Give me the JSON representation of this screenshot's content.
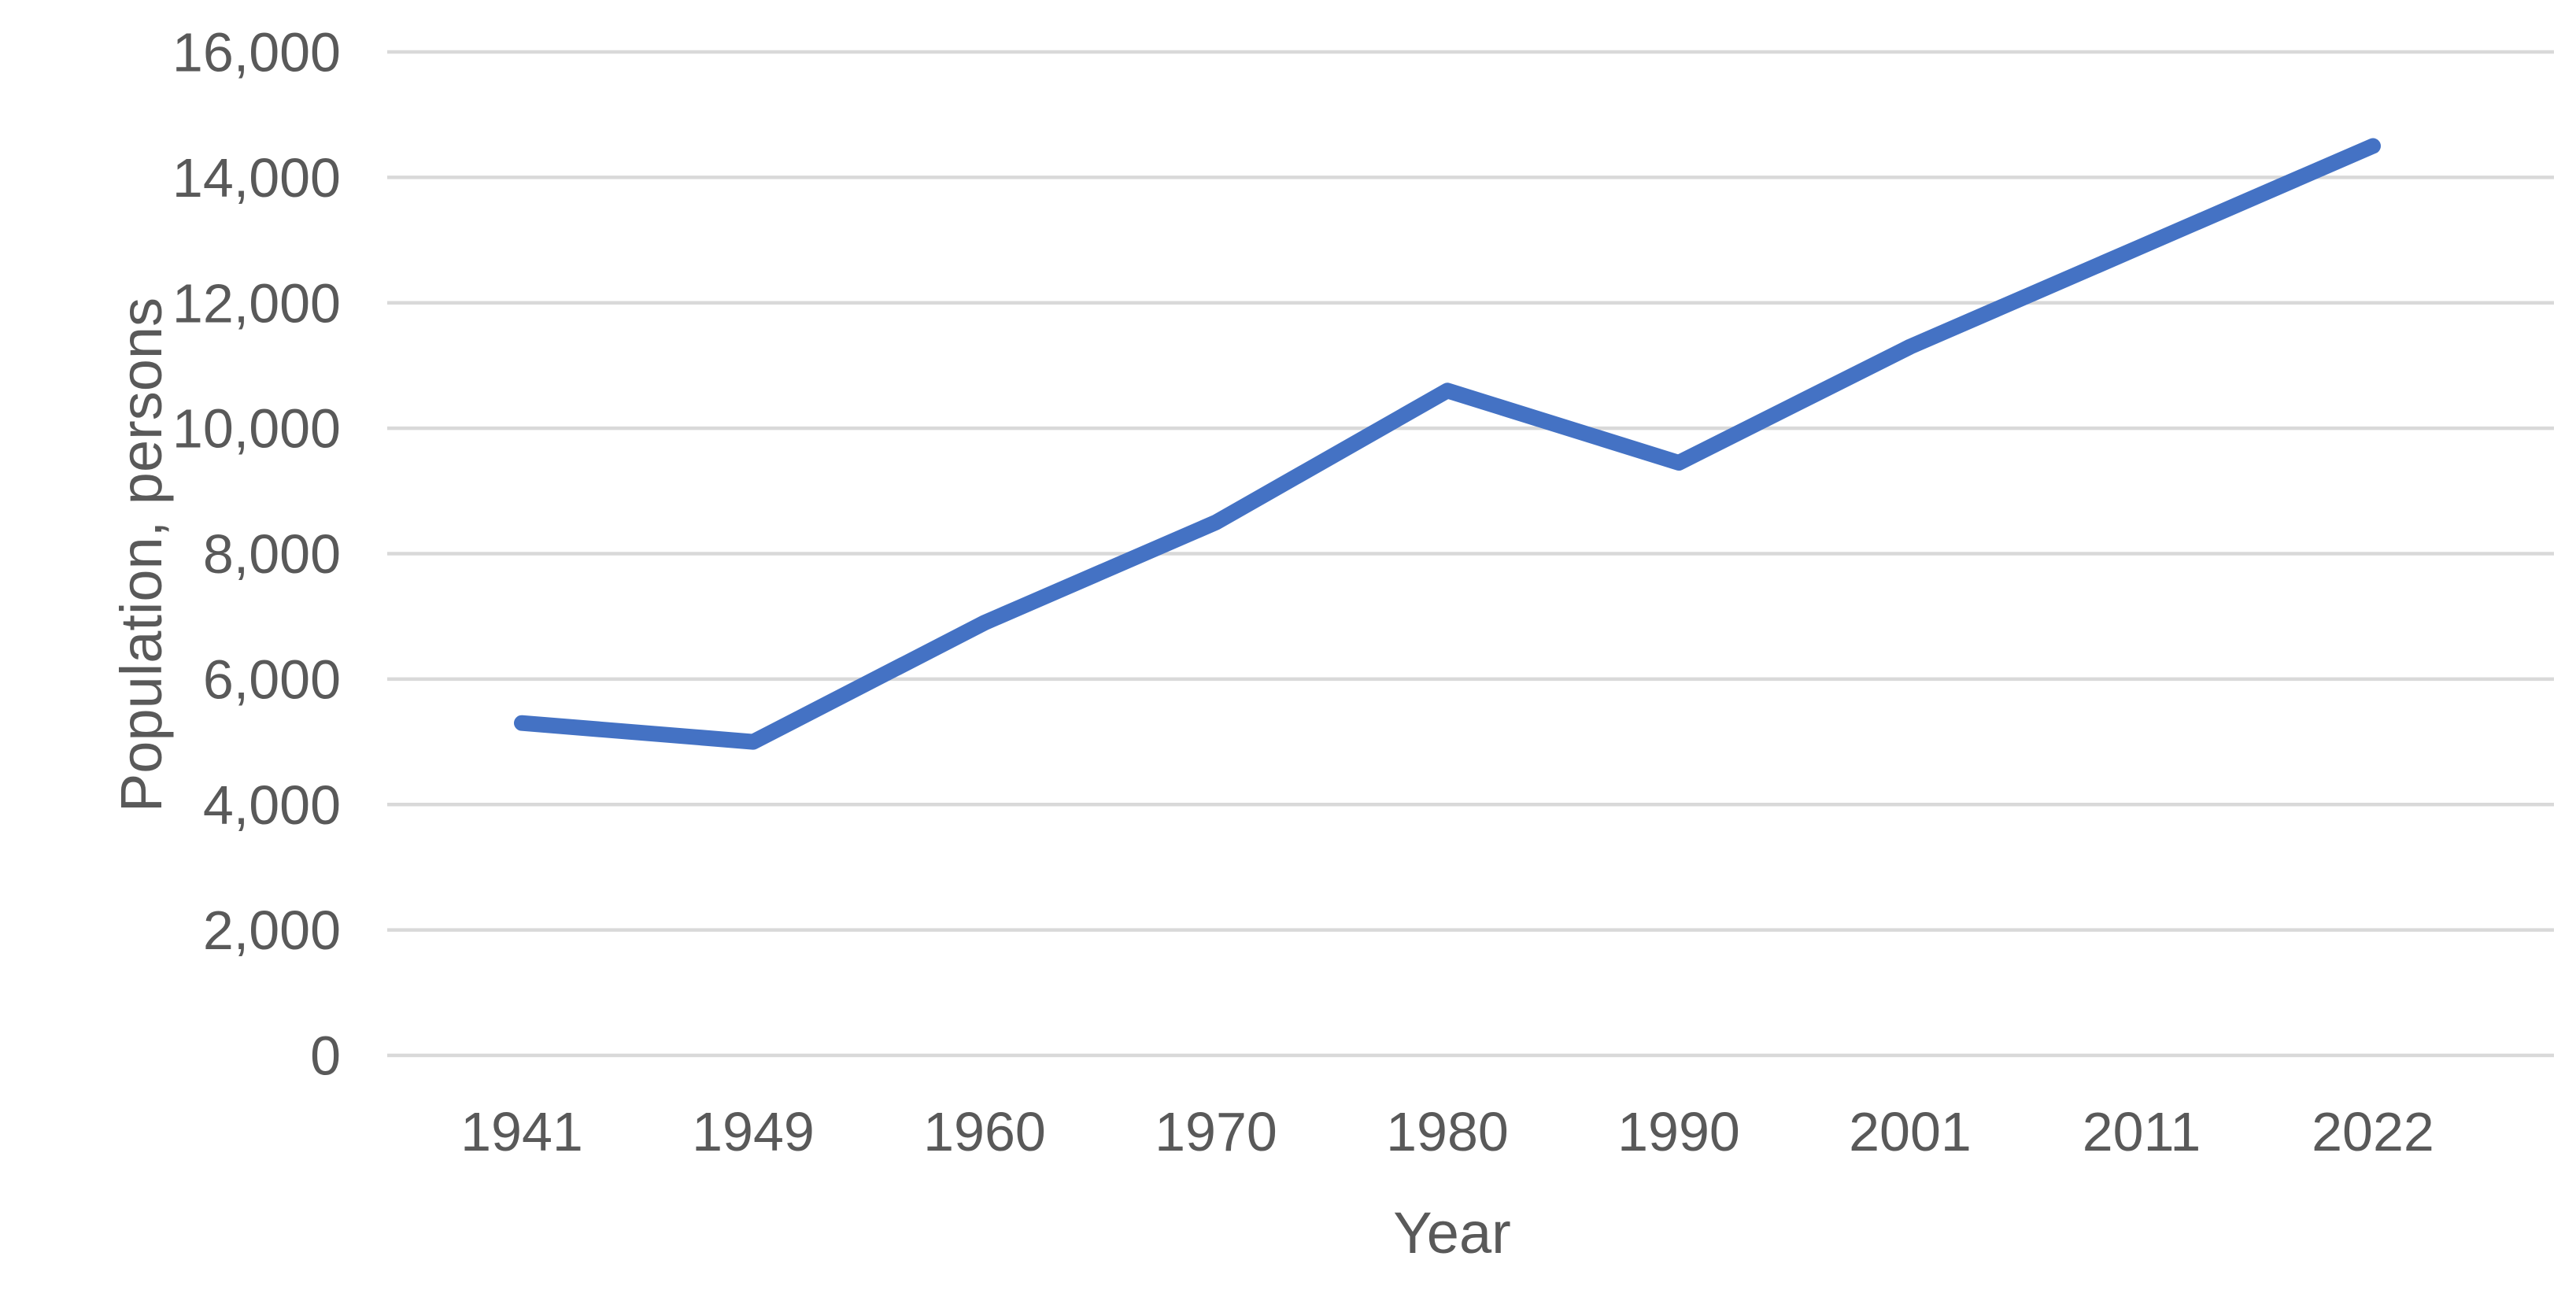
{
  "chart_data": {
    "type": "line",
    "title": "",
    "categories": [
      "1941",
      "1949",
      "1960",
      "1970",
      "1980",
      "1990",
      "2001",
      "2011",
      "2022"
    ],
    "series": [
      {
        "name": "Population",
        "values": [
          5300,
          5000,
          6900,
          8500,
          10600,
          9450,
          11300,
          12900,
          14500
        ]
      }
    ],
    "xlabel": "Year",
    "ylabel": "Population, persons",
    "ylim": [
      0,
      16000
    ],
    "y_tick_step": 2000,
    "y_tick_labels": [
      "0",
      "2,000",
      "4,000",
      "6,000",
      "8,000",
      "10,000",
      "12,000",
      "14,000",
      "16,000"
    ],
    "grid": "horizontal",
    "legend_position": "none",
    "colors": {
      "line": "#4472C4",
      "gridline": "#D9D9D9",
      "text": "#595959",
      "background": "#FFFFFF"
    }
  }
}
